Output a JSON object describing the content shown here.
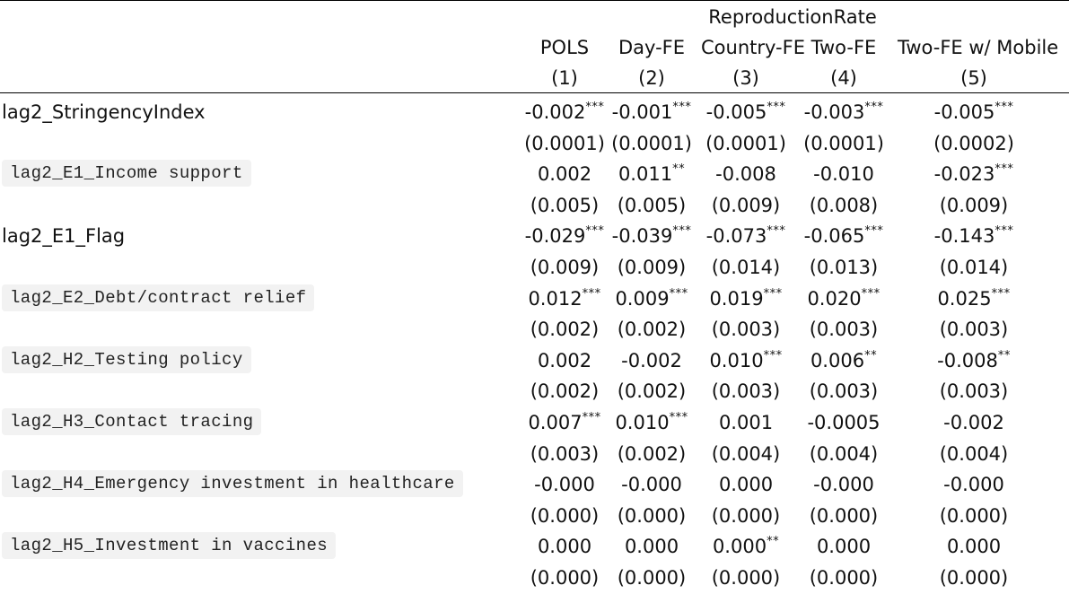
{
  "table": {
    "dependent_variable": "ReproductionRate",
    "columns": [
      {
        "name": "POLS",
        "number": "(1)"
      },
      {
        "name": "Day-FE",
        "number": "(2)"
      },
      {
        "name": "Country-FE",
        "number": "(3)"
      },
      {
        "name": "Two-FE",
        "number": "(4)"
      },
      {
        "name": "Two-FE w/ Mobile",
        "number": "(5)"
      }
    ],
    "rows": [
      {
        "variable": "lag2_StringencyIndex",
        "code_style": false,
        "coefficients": [
          {
            "value": "-0.002",
            "stars": "***"
          },
          {
            "value": "-0.001",
            "stars": "***"
          },
          {
            "value": "-0.005",
            "stars": "***"
          },
          {
            "value": "-0.003",
            "stars": "***"
          },
          {
            "value": "-0.005",
            "stars": "***"
          }
        ],
        "std_errors": [
          "(0.0001)",
          "(0.0001)",
          "(0.0001)",
          "(0.0001)",
          "(0.0002)"
        ]
      },
      {
        "variable": "lag2_E1_Income support",
        "code_style": true,
        "coefficients": [
          {
            "value": "0.002",
            "stars": ""
          },
          {
            "value": "0.011",
            "stars": "**"
          },
          {
            "value": "-0.008",
            "stars": ""
          },
          {
            "value": "-0.010",
            "stars": ""
          },
          {
            "value": "-0.023",
            "stars": "***"
          }
        ],
        "std_errors": [
          "(0.005)",
          "(0.005)",
          "(0.009)",
          "(0.008)",
          "(0.009)"
        ]
      },
      {
        "variable": "lag2_E1_Flag",
        "code_style": false,
        "coefficients": [
          {
            "value": "-0.029",
            "stars": "***"
          },
          {
            "value": "-0.039",
            "stars": "***"
          },
          {
            "value": "-0.073",
            "stars": "***"
          },
          {
            "value": "-0.065",
            "stars": "***"
          },
          {
            "value": "-0.143",
            "stars": "***"
          }
        ],
        "std_errors": [
          "(0.009)",
          "(0.009)",
          "(0.014)",
          "(0.013)",
          "(0.014)"
        ]
      },
      {
        "variable": "lag2_E2_Debt/contract relief",
        "code_style": true,
        "coefficients": [
          {
            "value": "0.012",
            "stars": "***"
          },
          {
            "value": "0.009",
            "stars": "***"
          },
          {
            "value": "0.019",
            "stars": "***"
          },
          {
            "value": "0.020",
            "stars": "***"
          },
          {
            "value": "0.025",
            "stars": "***"
          }
        ],
        "std_errors": [
          "(0.002)",
          "(0.002)",
          "(0.003)",
          "(0.003)",
          "(0.003)"
        ]
      },
      {
        "variable": "lag2_H2_Testing policy",
        "code_style": true,
        "coefficients": [
          {
            "value": "0.002",
            "stars": ""
          },
          {
            "value": "-0.002",
            "stars": ""
          },
          {
            "value": "0.010",
            "stars": "***"
          },
          {
            "value": "0.006",
            "stars": "**"
          },
          {
            "value": "-0.008",
            "stars": "**"
          }
        ],
        "std_errors": [
          "(0.002)",
          "(0.002)",
          "(0.003)",
          "(0.003)",
          "(0.003)"
        ]
      },
      {
        "variable": "lag2_H3_Contact tracing",
        "code_style": true,
        "coefficients": [
          {
            "value": "0.007",
            "stars": "***"
          },
          {
            "value": "0.010",
            "stars": "***"
          },
          {
            "value": "0.001",
            "stars": ""
          },
          {
            "value": "-0.0005",
            "stars": ""
          },
          {
            "value": "-0.002",
            "stars": ""
          }
        ],
        "std_errors": [
          "(0.003)",
          "(0.002)",
          "(0.004)",
          "(0.004)",
          "(0.004)"
        ]
      },
      {
        "variable": "lag2_H4_Emergency investment in healthcare",
        "code_style": true,
        "coefficients": [
          {
            "value": "-0.000",
            "stars": ""
          },
          {
            "value": "-0.000",
            "stars": ""
          },
          {
            "value": "0.000",
            "stars": ""
          },
          {
            "value": "-0.000",
            "stars": ""
          },
          {
            "value": "-0.000",
            "stars": ""
          }
        ],
        "std_errors": [
          "(0.000)",
          "(0.000)",
          "(0.000)",
          "(0.000)",
          "(0.000)"
        ]
      },
      {
        "variable": "lag2_H5_Investment in vaccines",
        "code_style": true,
        "coefficients": [
          {
            "value": "0.000",
            "stars": ""
          },
          {
            "value": "0.000",
            "stars": ""
          },
          {
            "value": "0.000",
            "stars": "**"
          },
          {
            "value": "0.000",
            "stars": ""
          },
          {
            "value": "0.000",
            "stars": ""
          }
        ],
        "std_errors": [
          "(0.000)",
          "(0.000)",
          "(0.000)",
          "(0.000)",
          "(0.000)"
        ]
      }
    ]
  }
}
